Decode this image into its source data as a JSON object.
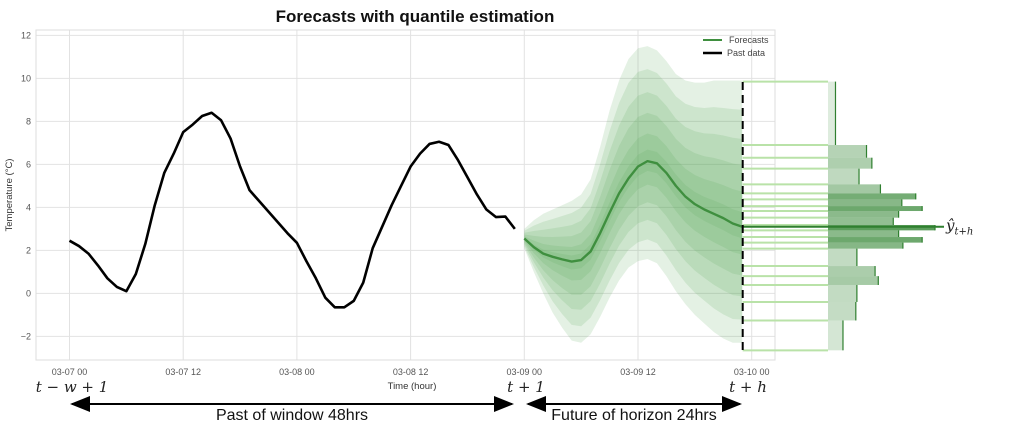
{
  "chart_data": {
    "type": "line",
    "title": "Forecasts with quantile estimation",
    "xlabel": "Time (hour)",
    "ylabel": "Temperature (°C)",
    "ylim": [
      -3.1,
      12.25
    ],
    "yticks": [
      -2,
      0,
      2,
      4,
      6,
      8,
      10,
      12
    ],
    "xticks": [
      "03-07 00",
      "03-07 12",
      "03-08 00",
      "03-08 12",
      "03-09 00",
      "03-09 12",
      "03-10 00"
    ],
    "grid": true,
    "legend_position": "top-right",
    "legend": [
      {
        "label": "Forecasts",
        "color": "#3f8f3f"
      },
      {
        "label": "Past data",
        "color": "#000000"
      }
    ],
    "past_data": {
      "name": "Past data",
      "x_start": "03-07 00",
      "frequency": "1h",
      "y": [
        2.45,
        2.2,
        1.85,
        1.3,
        0.7,
        0.3,
        0.1,
        0.9,
        2.3,
        4.1,
        5.6,
        6.5,
        7.5,
        7.85,
        8.25,
        8.4,
        8.05,
        7.2,
        5.9,
        4.8,
        4.3,
        3.8,
        3.3,
        2.8,
        2.35,
        1.5,
        0.7,
        -0.2,
        -0.65,
        -0.65,
        -0.35,
        0.5,
        2.1,
        3.1,
        4.1,
        5.0,
        5.9,
        6.5,
        6.95,
        7.05,
        6.9,
        6.2,
        5.4,
        4.6,
        3.9,
        3.55,
        3.57,
        3.0
      ]
    },
    "forecasts": {
      "name": "Forecasts",
      "x_start": "03-09 00",
      "frequency": "1h",
      "median": [
        2.55,
        2.15,
        1.85,
        1.7,
        1.58,
        1.48,
        1.55,
        1.95,
        2.8,
        3.75,
        4.65,
        5.35,
        5.9,
        6.15,
        6.05,
        5.6,
        5.0,
        4.5,
        4.15,
        3.9,
        3.7,
        3.5,
        3.25,
        3.1
      ],
      "upper_bound": [
        3.0,
        3.4,
        3.7,
        3.9,
        4.1,
        4.3,
        4.6,
        5.3,
        6.8,
        8.5,
        9.9,
        10.9,
        11.4,
        11.5,
        11.3,
        10.8,
        10.2,
        9.9,
        9.8,
        9.8,
        9.9,
        9.9,
        9.9,
        9.9
      ],
      "lower_bound": [
        2.1,
        1.0,
        0.0,
        -0.9,
        -1.6,
        -2.2,
        -2.3,
        -1.9,
        -1.1,
        -0.2,
        0.6,
        1.2,
        1.5,
        1.6,
        1.4,
        0.8,
        0.1,
        -0.5,
        -1.0,
        -1.4,
        -1.8,
        -2.1,
        -2.3,
        -2.3
      ]
    },
    "quantile_histogram": {
      "bin_edges": [
        9.85,
        6.9,
        6.31,
        5.8,
        5.07,
        4.65,
        4.37,
        4.06,
        3.83,
        3.52,
        3.18,
        2.93,
        2.62,
        2.36,
        2.08,
        1.27,
        0.8,
        0.39,
        -0.4,
        -1.26,
        -2.65
      ],
      "relative_density": [
        0.07,
        0.36,
        0.41,
        0.29,
        0.49,
        0.82,
        0.69,
        0.88,
        0.66,
        0.61,
        1.0,
        0.66,
        0.88,
        0.7,
        0.27,
        0.44,
        0.47,
        0.27,
        0.26,
        0.14
      ],
      "point_forecast": 3.1,
      "point_label": {
        "base": "ŷ",
        "sub": "t+h"
      }
    }
  },
  "annotations": {
    "window_start": "t − w + 1",
    "horizon_start": "t + 1",
    "horizon_end": "t + h",
    "past_span": "Past of window 48hrs",
    "future_span": "Future of horizon 24hrs"
  },
  "colors": {
    "forecast": "#3f8f3f",
    "band": "#5aa55a",
    "past": "#000000",
    "quantile_line": "#b9e2a8"
  }
}
